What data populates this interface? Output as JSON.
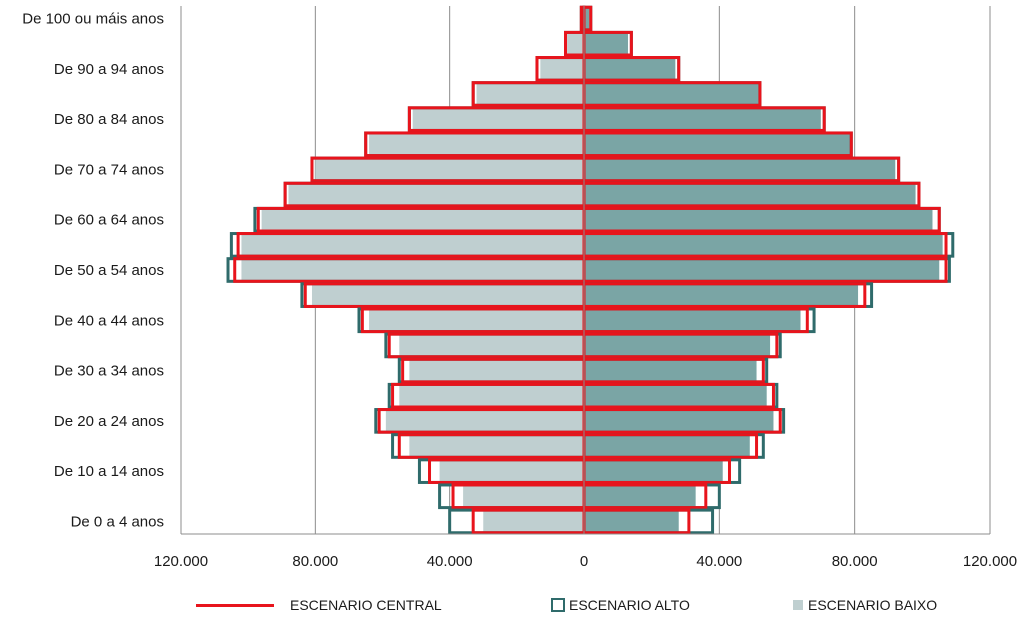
{
  "chart_data": {
    "type": "bar",
    "orientation": "horizontal",
    "layout": "population-pyramid",
    "xlim": [
      -120000,
      120000
    ],
    "x_ticks": [
      -120000,
      -80000,
      -40000,
      0,
      40000,
      80000,
      120000
    ],
    "x_tick_labels": [
      "120.000",
      "80.000",
      "40.000",
      "0",
      "40.000",
      "80.000",
      "120.000"
    ],
    "grid": true,
    "legend_position": "bottom",
    "categories": [
      "De 100 ou máis anos",
      "",
      "De 90 a 94 anos",
      "",
      "De 80 a 84 anos",
      "",
      "De 70 a 74 anos",
      "",
      "De 60 a 64 anos",
      "",
      "De 50 a 54 anos",
      "",
      "De 40 a 44 anos",
      "",
      "De 30 a 34 anos",
      "",
      "De 20 a 24 anos",
      "",
      "De 10 a 14 anos",
      "",
      "De 0 a 4 anos"
    ],
    "series": [
      {
        "name": "ESCENARIO CENTRAL",
        "left": [
          800,
          5500,
          14000,
          33000,
          52000,
          65000,
          81000,
          89000,
          97000,
          103000,
          104000,
          83000,
          66000,
          58000,
          54000,
          57000,
          61000,
          55000,
          46000,
          39000,
          33000
        ],
        "right": [
          2000,
          14000,
          28000,
          52000,
          71000,
          79000,
          93000,
          99000,
          105000,
          107000,
          107000,
          83000,
          66000,
          57000,
          53000,
          56000,
          58000,
          51000,
          43000,
          36000,
          31000
        ]
      },
      {
        "name": "ESCENARIO ALTO",
        "left": [
          800,
          5500,
          14000,
          33000,
          52000,
          65000,
          81000,
          89000,
          98000,
          105000,
          106000,
          84000,
          67000,
          59000,
          55000,
          58000,
          62000,
          57000,
          49000,
          43000,
          40000
        ],
        "right": [
          2000,
          14000,
          28000,
          52000,
          71000,
          79000,
          93000,
          99000,
          105000,
          109000,
          108000,
          85000,
          68000,
          58000,
          54000,
          57000,
          59000,
          53000,
          46000,
          40000,
          38000
        ]
      },
      {
        "name": "ESCENARIO BAIXO",
        "left": [
          600,
          5000,
          13000,
          32000,
          51000,
          64000,
          80000,
          88000,
          96000,
          102000,
          102000,
          81000,
          64000,
          55000,
          52000,
          55000,
          59000,
          52000,
          43000,
          36000,
          30000
        ],
        "right": [
          1500,
          13000,
          27000,
          52000,
          70000,
          79000,
          92000,
          98000,
          103000,
          106000,
          105000,
          81000,
          64000,
          55000,
          51000,
          54000,
          56000,
          49000,
          41000,
          33000,
          28000
        ]
      }
    ],
    "colors": {
      "central": "#e8141c",
      "alto": "#2f6b6b",
      "baixo_left": "#bfcfd0",
      "baixo_right": "#7aa5a5",
      "grid": "#8c8c8c"
    }
  },
  "legend": {
    "central": "ESCENARIO CENTRAL",
    "alto": "ESCENARIO ALTO",
    "baixo": "ESCENARIO BAIXO"
  }
}
